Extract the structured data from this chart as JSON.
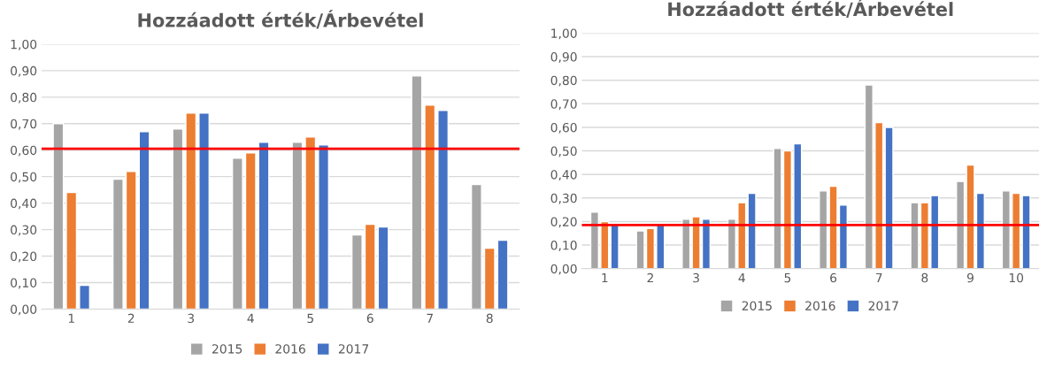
{
  "chart_data": [
    {
      "type": "bar",
      "title": "Hozzáadott érték/Árbevétel",
      "categories": [
        "1",
        "2",
        "3",
        "4",
        "5",
        "6",
        "7",
        "8"
      ],
      "series": [
        {
          "name": "2015",
          "color": "#a5a5a5",
          "values": [
            0.7,
            0.49,
            0.68,
            0.57,
            0.63,
            0.28,
            0.88,
            0.47
          ]
        },
        {
          "name": "2016",
          "color": "#ed7d31",
          "values": [
            0.44,
            0.52,
            0.74,
            0.59,
            0.65,
            0.32,
            0.77,
            0.23
          ]
        },
        {
          "name": "2017",
          "color": "#4472c4",
          "values": [
            0.09,
            0.67,
            0.74,
            0.63,
            0.62,
            0.31,
            0.75,
            0.26
          ]
        }
      ],
      "ylim": [
        0,
        1
      ],
      "yticks": [
        {
          "value": 0,
          "label": "0,00"
        },
        {
          "value": 0.1,
          "label": "0,10"
        },
        {
          "value": 0.2,
          "label": "0,20"
        },
        {
          "value": 0.3,
          "label": "0,30"
        },
        {
          "value": 0.4,
          "label": "0,40"
        },
        {
          "value": 0.5,
          "label": "0,50"
        },
        {
          "value": 0.6,
          "label": "0,60"
        },
        {
          "value": 0.7,
          "label": "0,70"
        },
        {
          "value": 0.8,
          "label": "0,80"
        },
        {
          "value": 0.9,
          "label": "0,90"
        },
        {
          "value": 1.0,
          "label": "1,00"
        }
      ],
      "ref_lines": [
        {
          "axis": "y",
          "value": 0.605,
          "color": "#ff0000"
        }
      ],
      "grid": "y",
      "legend": "bottom"
    },
    {
      "type": "bar",
      "title": "Hozzáadott érték/Árbevétel",
      "categories": [
        "1",
        "2",
        "3",
        "4",
        "5",
        "6",
        "7",
        "8",
        "9",
        "10"
      ],
      "series": [
        {
          "name": "2015",
          "color": "#a5a5a5",
          "values": [
            0.24,
            0.16,
            0.21,
            0.21,
            0.51,
            0.33,
            0.78,
            0.28,
            0.37,
            0.33
          ]
        },
        {
          "name": "2016",
          "color": "#ed7d31",
          "values": [
            0.2,
            0.17,
            0.22,
            0.28,
            0.5,
            0.35,
            0.62,
            0.28,
            0.44,
            0.32
          ]
        },
        {
          "name": "2017",
          "color": "#4472c4",
          "values": [
            0.19,
            0.19,
            0.21,
            0.32,
            0.53,
            0.27,
            0.6,
            0.31,
            0.32,
            0.31
          ]
        }
      ],
      "ylim": [
        0,
        1
      ],
      "yticks": [
        {
          "value": 0,
          "label": "0,00"
        },
        {
          "value": 0.1,
          "label": "0,10"
        },
        {
          "value": 0.2,
          "label": "0,20"
        },
        {
          "value": 0.3,
          "label": "0,30"
        },
        {
          "value": 0.4,
          "label": "0,40"
        },
        {
          "value": 0.5,
          "label": "0,50"
        },
        {
          "value": 0.6,
          "label": "0,60"
        },
        {
          "value": 0.7,
          "label": "0,70"
        },
        {
          "value": 0.8,
          "label": "0,80"
        },
        {
          "value": 0.9,
          "label": "0,90"
        },
        {
          "value": 1.0,
          "label": "1,00"
        }
      ],
      "ref_lines": [
        {
          "axis": "y",
          "value": 0.185,
          "color": "#ff0000"
        }
      ],
      "grid": "y",
      "legend": "bottom"
    }
  ]
}
